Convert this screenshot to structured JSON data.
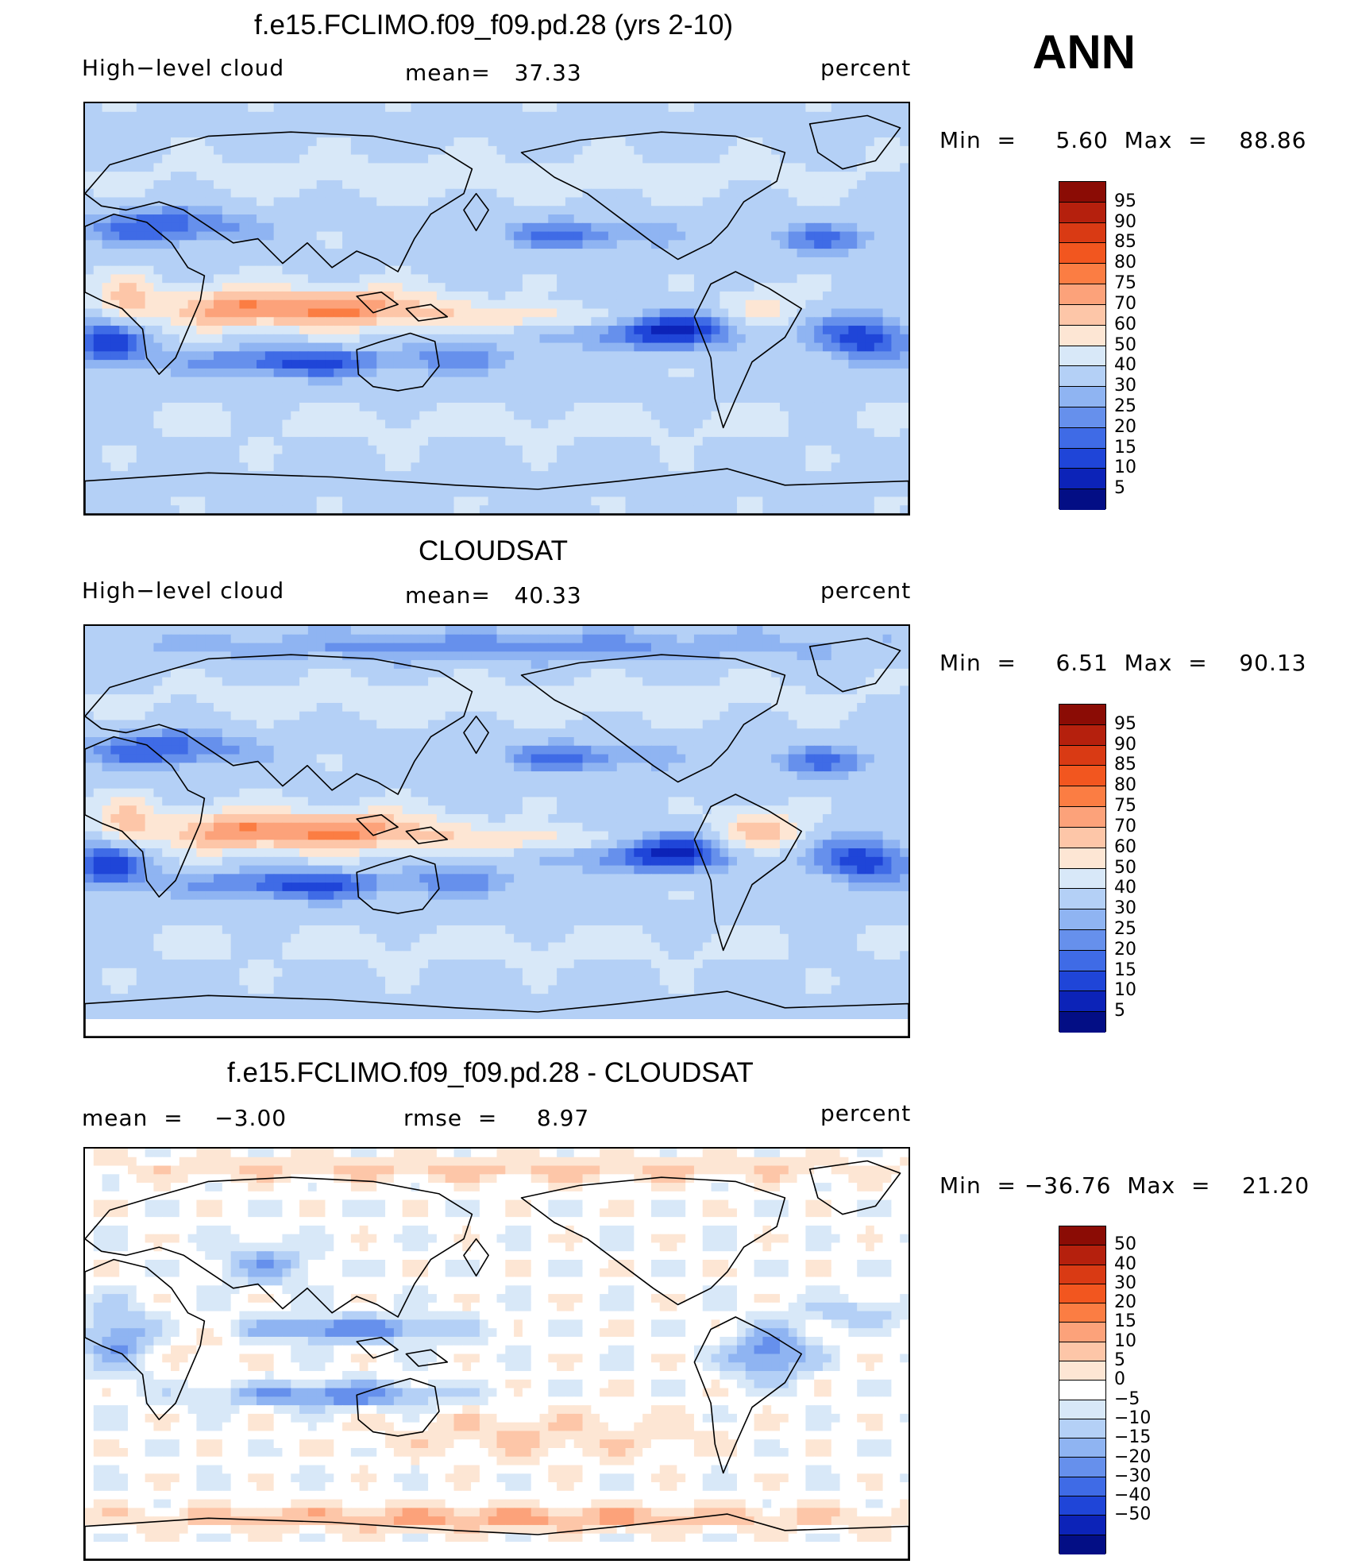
{
  "season": "ANN",
  "panels": [
    {
      "title": "f.e15.FCLIMO.f09_f09.pd.28 (yrs 2-10)",
      "left_label": "High−level cloud",
      "center_label": "mean=   37.33",
      "right_label": "percent",
      "minmax": "Min  =     5.60  Max  =    88.86",
      "field": "model",
      "colorbar_ticks": [
        "95",
        "90",
        "85",
        "80",
        "75",
        "70",
        "60",
        "50",
        "40",
        "30",
        "25",
        "20",
        "15",
        "10",
        "5"
      ],
      "colors": [
        "#8b0c05",
        "#b5200d",
        "#d93a14",
        "#f2561f",
        "#fb7d43",
        "#fca27a",
        "#fdc6a8",
        "#fde6d4",
        "#d8e8f8",
        "#b4d0f6",
        "#8fb4f2",
        "#6690ec",
        "#3f6be6",
        "#1f45d8",
        "#0c23b8",
        "#030e85"
      ]
    },
    {
      "title": "CLOUDSAT",
      "left_label": "High−level cloud",
      "center_label": "mean=   40.33",
      "right_label": "percent",
      "minmax": "Min  =     6.51  Max  =    90.13",
      "field": "obs",
      "colorbar_ticks": [
        "95",
        "90",
        "85",
        "80",
        "75",
        "70",
        "60",
        "50",
        "40",
        "30",
        "25",
        "20",
        "15",
        "10",
        "5"
      ],
      "colors": [
        "#8b0c05",
        "#b5200d",
        "#d93a14",
        "#f2561f",
        "#fb7d43",
        "#fca27a",
        "#fdc6a8",
        "#fde6d4",
        "#d8e8f8",
        "#b4d0f6",
        "#8fb4f2",
        "#6690ec",
        "#3f6be6",
        "#1f45d8",
        "#0c23b8",
        "#030e85"
      ]
    },
    {
      "title": "f.e15.FCLIMO.f09_f09.pd.28 - CLOUDSAT",
      "left_label": "mean  =    −3.00",
      "center_label": "rmse  =     8.97",
      "right_label": "percent",
      "minmax": "Min  = −36.76  Max  =    21.20",
      "field": "diff",
      "colorbar_ticks": [
        "50",
        "40",
        "30",
        "20",
        "15",
        "10",
        "5",
        "0",
        "−5",
        "−10",
        "−15",
        "−20",
        "−30",
        "−40",
        "−50"
      ],
      "colors": [
        "#8b0c05",
        "#b5200d",
        "#d93a14",
        "#f2561f",
        "#fb7d43",
        "#fca27a",
        "#fdc6a8",
        "#fde6d4",
        "#ffffff",
        "#d8e8f8",
        "#b4d0f6",
        "#8fb4f2",
        "#6690ec",
        "#3f6be6",
        "#1f45d8",
        "#0c23b8",
        "#030e85"
      ]
    }
  ]
}
